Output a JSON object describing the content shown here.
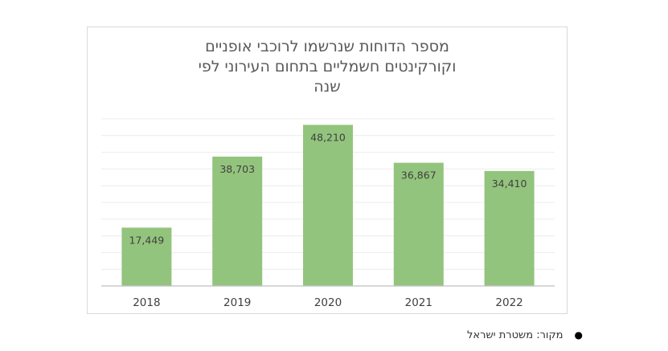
{
  "chart_data": {
    "type": "bar",
    "title_lines": [
      "מספר הדוחות שנרשמו לרוכבי אופניים",
      "וקורקינטים חשמליים בתחום העירוני לפי",
      "שנה"
    ],
    "categories": [
      "2018",
      "2019",
      "2020",
      "2021",
      "2022"
    ],
    "values": [
      17449,
      38703,
      48210,
      36867,
      34410
    ],
    "data_labels": [
      "17,449",
      "38,703",
      "48,210",
      "36,867",
      "34,410"
    ],
    "xlabel": "",
    "ylabel": "",
    "ylim": [
      0,
      50000
    ],
    "grid": true,
    "legend": "none",
    "bar_color": "#93c47d",
    "gridline_color": "#ececec",
    "axis_color": "#bfbfbf",
    "label_color": "#404040"
  },
  "source_note": {
    "text": "מקור: משטרת ישראל",
    "bullet": "●"
  }
}
